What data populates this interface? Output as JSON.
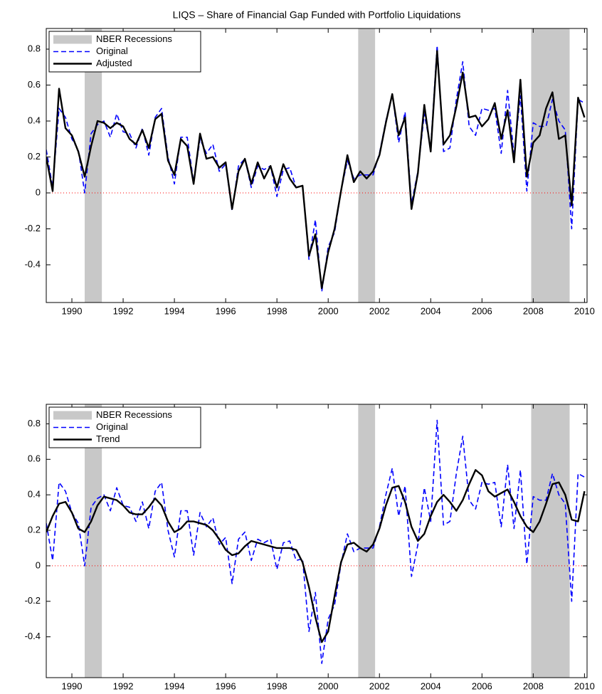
{
  "chart_data": [
    {
      "type": "line",
      "title": "LIQS – Share of Financial Gap Funded with Portfolio Liquidations",
      "x": [
        1989,
        1989.25,
        1989.5,
        1989.75,
        1990,
        1990.25,
        1990.5,
        1990.75,
        1991,
        1991.25,
        1991.5,
        1991.75,
        1992,
        1992.25,
        1992.5,
        1992.75,
        1993,
        1993.25,
        1993.5,
        1993.75,
        1994,
        1994.25,
        1994.5,
        1994.75,
        1995,
        1995.25,
        1995.5,
        1995.75,
        1996,
        1996.25,
        1996.5,
        1996.75,
        1997,
        1997.25,
        1997.5,
        1997.75,
        1998,
        1998.25,
        1998.5,
        1998.75,
        1999,
        1999.25,
        1999.5,
        1999.75,
        2000,
        2000.25,
        2000.5,
        2000.75,
        2001,
        2001.25,
        2001.5,
        2001.75,
        2002,
        2002.25,
        2002.5,
        2002.75,
        2003,
        2003.25,
        2003.5,
        2003.75,
        2004,
        2004.25,
        2004.5,
        2004.75,
        2005,
        2005.25,
        2005.5,
        2005.75,
        2006,
        2006.25,
        2006.5,
        2006.75,
        2007,
        2007.25,
        2007.5,
        2007.75,
        2008,
        2008.25,
        2008.5,
        2008.75,
        2009,
        2009.25,
        2009.5,
        2009.75,
        2010
      ],
      "recessions": {
        "name": "NBER Recessions",
        "color": "#c8c8c8",
        "spans": [
          [
            1990.5,
            1991.17
          ],
          [
            2001.17,
            2001.83
          ],
          [
            2007.92,
            2009.42
          ]
        ]
      },
      "series": [
        {
          "name": "Original",
          "color": "#0000ff",
          "dash": true,
          "values": [
            0.24,
            0.03,
            0.47,
            0.42,
            0.3,
            0.24,
            0.0,
            0.33,
            0.38,
            0.4,
            0.31,
            0.44,
            0.34,
            0.33,
            0.25,
            0.36,
            0.21,
            0.42,
            0.47,
            0.2,
            0.05,
            0.31,
            0.31,
            0.06,
            0.3,
            0.22,
            0.27,
            0.12,
            0.16,
            -0.1,
            0.15,
            0.19,
            0.03,
            0.15,
            0.13,
            0.15,
            -0.02,
            0.13,
            0.14,
            0.03,
            0.04,
            -0.37,
            -0.15,
            -0.55,
            -0.3,
            -0.22,
            0.01,
            0.18,
            0.08,
            0.1,
            0.1,
            0.1,
            0.22,
            0.4,
            0.55,
            0.28,
            0.45,
            -0.06,
            0.12,
            0.44,
            0.25,
            0.82,
            0.23,
            0.25,
            0.52,
            0.73,
            0.37,
            0.32,
            0.47,
            0.46,
            0.47,
            0.22,
            0.57,
            0.21,
            0.54,
            0.01,
            0.39,
            0.37,
            0.37,
            0.52,
            0.4,
            0.35,
            -0.2,
            0.52,
            0.5
          ]
        },
        {
          "name": "Adjusted",
          "color": "#000000",
          "dash": false,
          "values": [
            0.2,
            0.01,
            0.58,
            0.36,
            0.32,
            0.23,
            0.09,
            0.26,
            0.4,
            0.39,
            0.36,
            0.39,
            0.37,
            0.3,
            0.27,
            0.35,
            0.25,
            0.41,
            0.44,
            0.18,
            0.1,
            0.3,
            0.26,
            0.05,
            0.33,
            0.19,
            0.2,
            0.14,
            0.17,
            -0.09,
            0.12,
            0.19,
            0.05,
            0.17,
            0.08,
            0.15,
            0.03,
            0.16,
            0.08,
            0.03,
            0.04,
            -0.35,
            -0.23,
            -0.53,
            -0.33,
            -0.2,
            0.01,
            0.21,
            0.06,
            0.12,
            0.08,
            0.12,
            0.21,
            0.39,
            0.55,
            0.32,
            0.42,
            -0.09,
            0.11,
            0.49,
            0.23,
            0.79,
            0.27,
            0.32,
            0.48,
            0.67,
            0.42,
            0.43,
            0.37,
            0.41,
            0.5,
            0.3,
            0.46,
            0.17,
            0.63,
            0.09,
            0.28,
            0.32,
            0.47,
            0.56,
            0.3,
            0.32,
            -0.07,
            0.53,
            0.42
          ]
        }
      ],
      "hline": 0,
      "xlim": [
        1989,
        2010.1
      ],
      "xticks": [
        1990,
        1992,
        1994,
        1996,
        1998,
        2000,
        2002,
        2004,
        2006,
        2008,
        2010
      ],
      "ylim": [
        -0.61,
        0.915
      ],
      "yticks": [
        -0.4,
        -0.2,
        0,
        0.2,
        0.4,
        0.6,
        0.8
      ],
      "legend": "upper-left"
    },
    {
      "type": "line",
      "x": [
        1989,
        1989.25,
        1989.5,
        1989.75,
        1990,
        1990.25,
        1990.5,
        1990.75,
        1991,
        1991.25,
        1991.5,
        1991.75,
        1992,
        1992.25,
        1992.5,
        1992.75,
        1993,
        1993.25,
        1993.5,
        1993.75,
        1994,
        1994.25,
        1994.5,
        1994.75,
        1995,
        1995.25,
        1995.5,
        1995.75,
        1996,
        1996.25,
        1996.5,
        1996.75,
        1997,
        1997.25,
        1997.5,
        1997.75,
        1998,
        1998.25,
        1998.5,
        1998.75,
        1999,
        1999.25,
        1999.5,
        1999.75,
        2000,
        2000.25,
        2000.5,
        2000.75,
        2001,
        2001.25,
        2001.5,
        2001.75,
        2002,
        2002.25,
        2002.5,
        2002.75,
        2003,
        2003.25,
        2003.5,
        2003.75,
        2004,
        2004.25,
        2004.5,
        2004.75,
        2005,
        2005.25,
        2005.5,
        2005.75,
        2006,
        2006.25,
        2006.5,
        2006.75,
        2007,
        2007.25,
        2007.5,
        2007.75,
        2008,
        2008.25,
        2008.5,
        2008.75,
        2009,
        2009.25,
        2009.5,
        2009.75,
        2010
      ],
      "recessions": {
        "name": "NBER Recessions",
        "color": "#c8c8c8",
        "spans": [
          [
            1990.5,
            1991.17
          ],
          [
            2001.17,
            2001.83
          ],
          [
            2007.92,
            2009.42
          ]
        ]
      },
      "series": [
        {
          "name": "Original",
          "color": "#0000ff",
          "dash": true,
          "values": [
            0.24,
            0.03,
            0.47,
            0.42,
            0.3,
            0.24,
            0.0,
            0.33,
            0.38,
            0.4,
            0.31,
            0.44,
            0.34,
            0.33,
            0.25,
            0.36,
            0.21,
            0.42,
            0.47,
            0.2,
            0.05,
            0.31,
            0.31,
            0.06,
            0.3,
            0.22,
            0.27,
            0.12,
            0.16,
            -0.1,
            0.15,
            0.19,
            0.03,
            0.15,
            0.13,
            0.15,
            -0.02,
            0.13,
            0.14,
            0.03,
            0.04,
            -0.37,
            -0.15,
            -0.55,
            -0.3,
            -0.22,
            0.01,
            0.18,
            0.08,
            0.1,
            0.1,
            0.1,
            0.22,
            0.4,
            0.55,
            0.28,
            0.45,
            -0.06,
            0.12,
            0.44,
            0.25,
            0.82,
            0.23,
            0.25,
            0.52,
            0.73,
            0.37,
            0.32,
            0.47,
            0.46,
            0.47,
            0.22,
            0.57,
            0.21,
            0.54,
            0.01,
            0.39,
            0.37,
            0.37,
            0.52,
            0.4,
            0.35,
            -0.2,
            0.52,
            0.5
          ]
        },
        {
          "name": "Trend",
          "color": "#000000",
          "dash": false,
          "values": [
            0.19,
            0.28,
            0.35,
            0.36,
            0.3,
            0.21,
            0.19,
            0.25,
            0.34,
            0.39,
            0.38,
            0.37,
            0.34,
            0.3,
            0.29,
            0.29,
            0.33,
            0.38,
            0.34,
            0.25,
            0.19,
            0.21,
            0.25,
            0.25,
            0.24,
            0.23,
            0.2,
            0.15,
            0.09,
            0.06,
            0.07,
            0.11,
            0.14,
            0.13,
            0.12,
            0.11,
            0.1,
            0.1,
            0.1,
            0.09,
            0.02,
            -0.12,
            -0.29,
            -0.43,
            -0.37,
            -0.17,
            0.02,
            0.12,
            0.13,
            0.1,
            0.08,
            0.12,
            0.21,
            0.34,
            0.44,
            0.45,
            0.36,
            0.22,
            0.14,
            0.18,
            0.28,
            0.36,
            0.4,
            0.36,
            0.31,
            0.37,
            0.46,
            0.54,
            0.51,
            0.42,
            0.39,
            0.41,
            0.43,
            0.36,
            0.28,
            0.22,
            0.19,
            0.25,
            0.35,
            0.46,
            0.47,
            0.4,
            0.26,
            0.25,
            0.42
          ]
        }
      ],
      "hline": 0,
      "xlim": [
        1989,
        2010.1
      ],
      "xticks": [
        1990,
        1992,
        1994,
        1996,
        1998,
        2000,
        2002,
        2004,
        2006,
        2008,
        2010
      ],
      "ylim": [
        -0.63,
        0.91
      ],
      "yticks": [
        -0.4,
        -0.2,
        0,
        0.2,
        0.4,
        0.6,
        0.8
      ],
      "legend": "upper-left"
    }
  ]
}
